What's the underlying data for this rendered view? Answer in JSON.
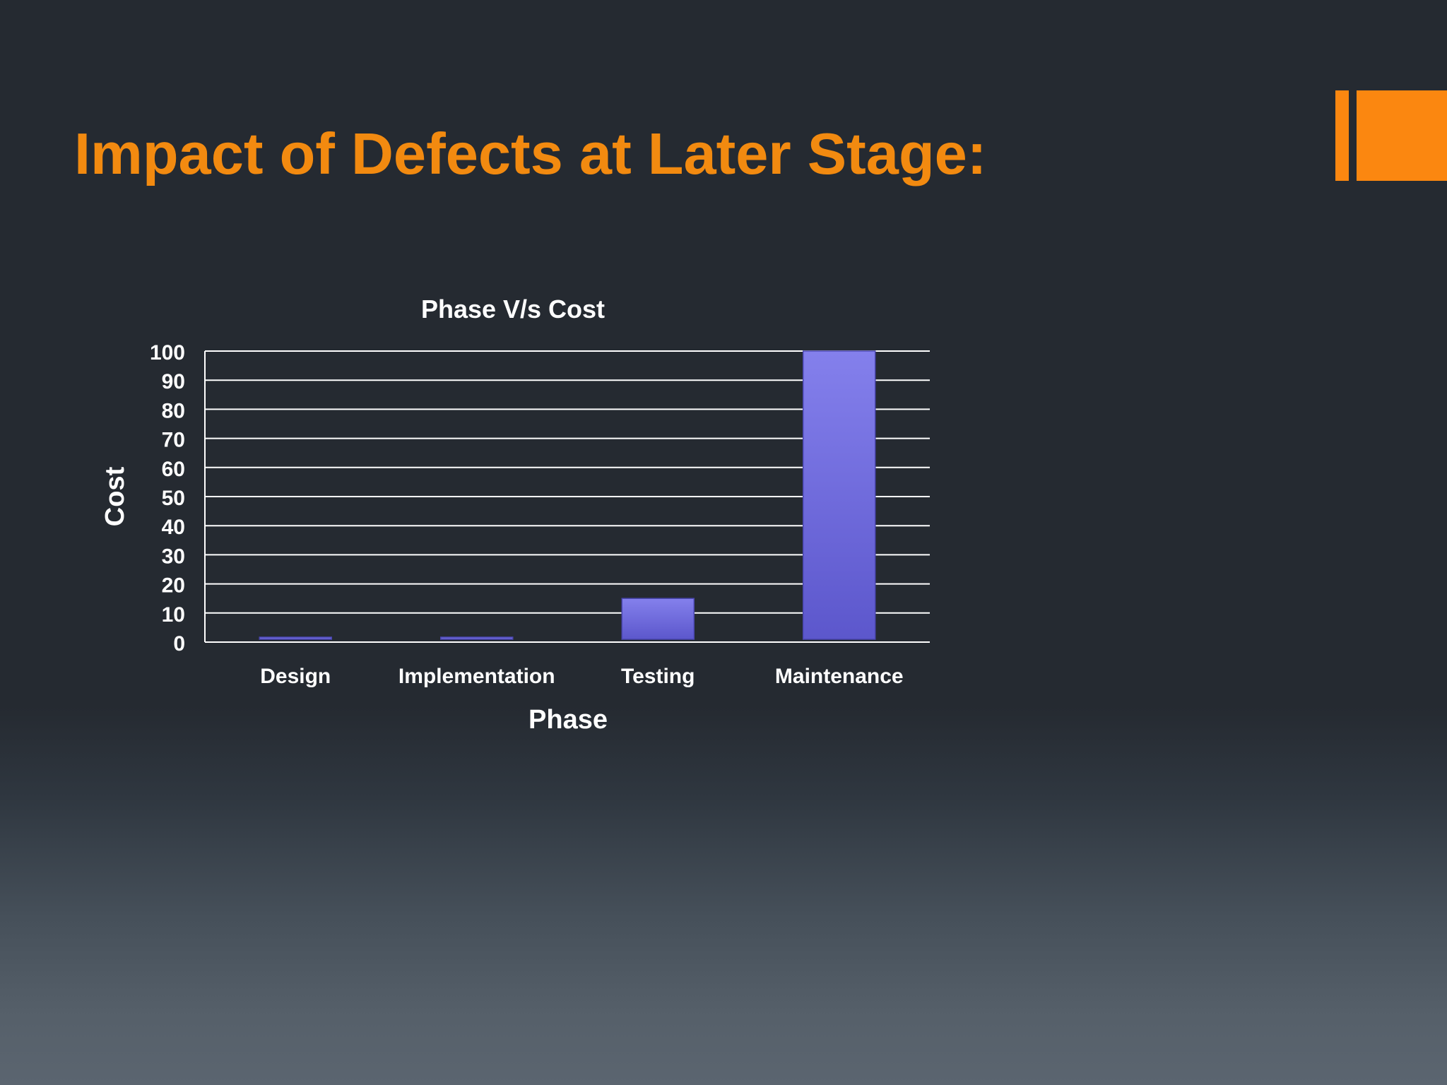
{
  "slide": {
    "title": "Impact of Defects at Later Stage:",
    "accent_color": "#fb8710",
    "title_color": "#f28a10"
  },
  "chart_data": {
    "type": "bar",
    "title": "Phase V/s Cost",
    "xlabel": "Phase",
    "ylabel": "Cost",
    "categories": [
      "Design",
      "Implementation",
      "Testing",
      "Maintenance"
    ],
    "values": [
      1,
      1.5,
      15,
      100
    ],
    "ylim": [
      0,
      100
    ],
    "yticks": [
      0,
      10,
      20,
      30,
      40,
      50,
      60,
      70,
      80,
      90,
      100
    ],
    "grid": true,
    "legend": "none",
    "bar_color_top": "#8480ec",
    "bar_color_bottom": "#5c57cc"
  }
}
